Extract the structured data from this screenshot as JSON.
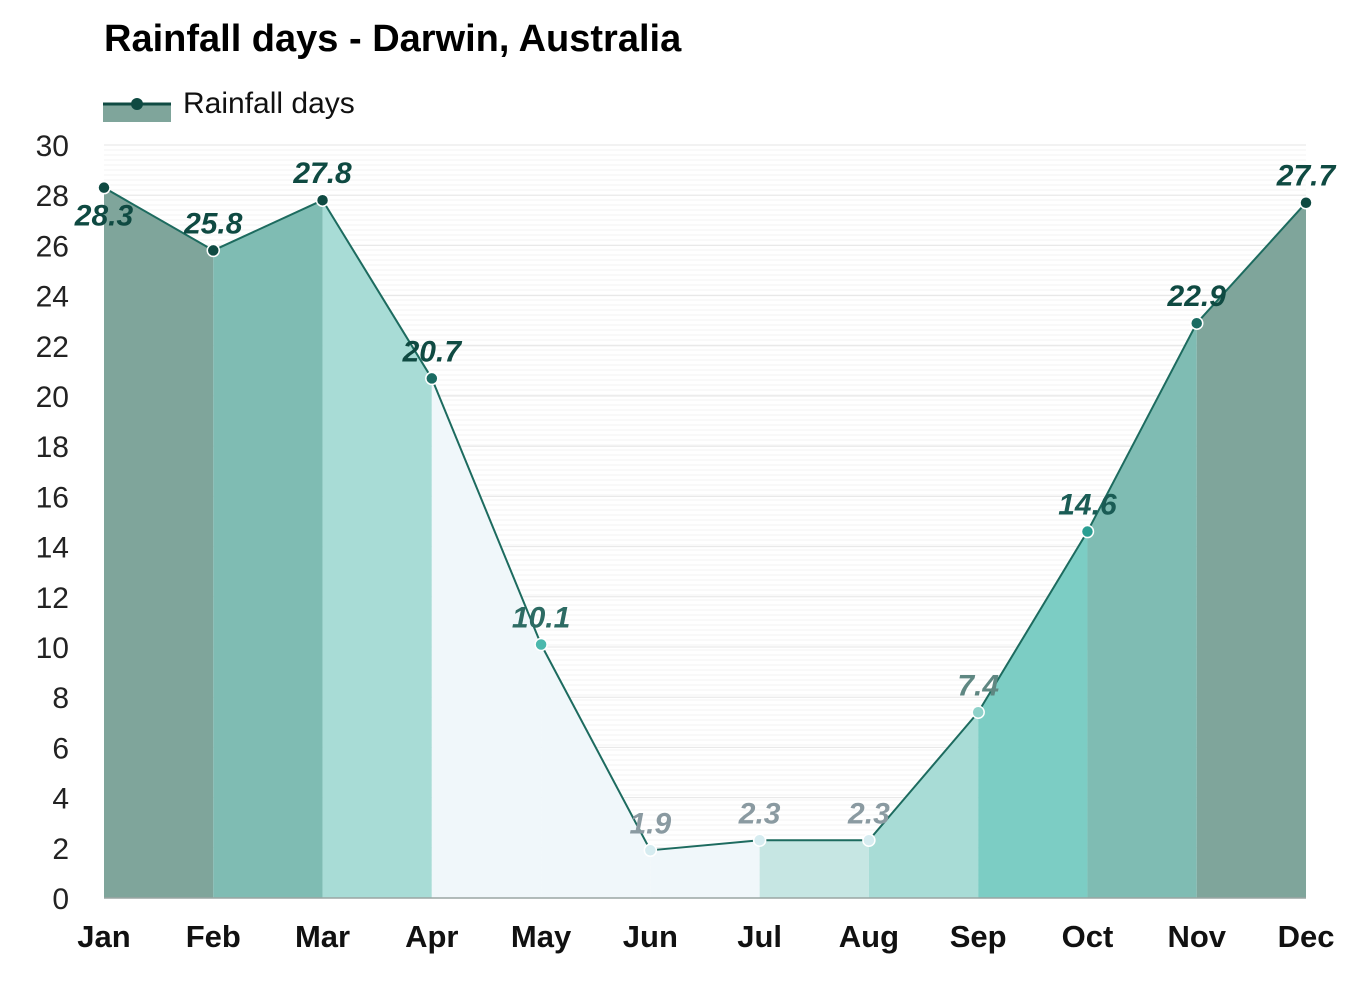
{
  "chart_data": {
    "type": "area",
    "title": "Rainfall days - Darwin, Australia",
    "categories": [
      "Jan",
      "Feb",
      "Mar",
      "Apr",
      "May",
      "Jun",
      "Jul",
      "Aug",
      "Sep",
      "Oct",
      "Nov",
      "Dec"
    ],
    "series": [
      {
        "name": "Rainfall days",
        "values": [
          28.3,
          25.8,
          27.8,
          20.7,
          10.1,
          1.9,
          2.3,
          2.3,
          7.4,
          14.6,
          22.9,
          27.7
        ]
      }
    ],
    "data_labels": [
      "28.3",
      "25.8",
      "27.8",
      "20.7",
      "10.1",
      "1.9",
      "2.3",
      "2.3",
      "7.4",
      "14.6",
      "22.9",
      "27.7"
    ],
    "yticks": [
      0,
      2,
      4,
      6,
      8,
      10,
      12,
      14,
      16,
      18,
      20,
      22,
      24,
      26,
      28,
      30
    ],
    "ylim": [
      0,
      30
    ],
    "grid": true,
    "legend_position": "top-left",
    "colors": {
      "line": "#1d6b5f",
      "legend_swatch": "#7fa59b",
      "legend_marker": "#0f4a42",
      "grid": "#e6e6e6",
      "bands": [
        "#7fa59b",
        "#7fa59b",
        "#7fbcb3",
        "#a8dcd6",
        "#f0f7fa",
        "#f0f7fa",
        "#f0f7fa",
        "#c6e6e3",
        "#a8dcd6",
        "#7ccdc4",
        "#7fbcb3",
        "#7fa59b"
      ],
      "markers": [
        "#0f4a42",
        "#0f4a42",
        "#0f4a42",
        "#1a6b62",
        "#4bb8ad",
        "#d6ecf0",
        "#d6ecf0",
        "#d6ecf0",
        "#8ed1c9",
        "#2a9e92",
        "#1a6b62",
        "#0f4a42"
      ],
      "labels": [
        "#0f4a42",
        "#0f4a42",
        "#0f4a42",
        "#0f4a42",
        "#2d6b63",
        "#8a9aa1",
        "#8a9aa1",
        "#8a9aa1",
        "#5f8782",
        "#1a5c55",
        "#0f4a42",
        "#0f4a42"
      ]
    }
  }
}
